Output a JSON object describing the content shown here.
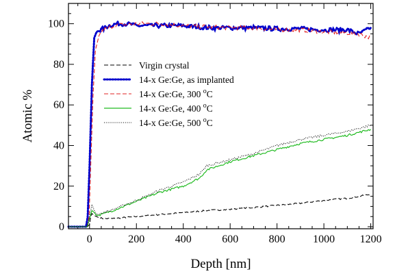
{
  "chart_data": {
    "type": "line",
    "xlabel": "Depth [nm]",
    "ylabel": "Atomic %",
    "xlim": [
      -90,
      1210
    ],
    "ylim": [
      -1,
      110
    ],
    "xticks_major": [
      0,
      200,
      400,
      600,
      800,
      1000,
      1200
    ],
    "yticks_major": [
      0,
      20,
      40,
      60,
      80,
      100
    ],
    "x_minor_step": 50,
    "y_minor_step": 5,
    "grid": false,
    "legend_position": "center-left",
    "series": [
      {
        "name": "Virgin crystal",
        "color": "#000000",
        "style": "dashed",
        "points": [
          [
            -90,
            0
          ],
          [
            -10,
            0
          ],
          [
            0,
            1
          ],
          [
            5,
            5
          ],
          [
            10,
            6.5
          ],
          [
            20,
            5.5
          ],
          [
            30,
            5
          ],
          [
            40,
            4.5
          ],
          [
            60,
            4
          ],
          [
            100,
            4
          ],
          [
            200,
            5
          ],
          [
            300,
            6
          ],
          [
            400,
            7
          ],
          [
            500,
            8
          ],
          [
            600,
            8.5
          ],
          [
            700,
            9.5
          ],
          [
            800,
            10.5
          ],
          [
            900,
            11.5
          ],
          [
            1000,
            13
          ],
          [
            1100,
            14
          ],
          [
            1200,
            16
          ]
        ]
      },
      {
        "name": "14-x Ge:Ge, as implanted",
        "color": "#0000cc",
        "style": "dotted-thick",
        "points": [
          [
            -90,
            0
          ],
          [
            -15,
            0
          ],
          [
            -8,
            5
          ],
          [
            0,
            30
          ],
          [
            10,
            70
          ],
          [
            20,
            93
          ],
          [
            30,
            96
          ],
          [
            50,
            97
          ],
          [
            80,
            99
          ],
          [
            120,
            100
          ],
          [
            160,
            100
          ],
          [
            200,
            99
          ],
          [
            300,
            99
          ],
          [
            400,
            99
          ],
          [
            500,
            98
          ],
          [
            600,
            98
          ],
          [
            700,
            98
          ],
          [
            800,
            97.5
          ],
          [
            900,
            97.5
          ],
          [
            1000,
            97
          ],
          [
            1100,
            97
          ],
          [
            1150,
            95
          ],
          [
            1200,
            98
          ]
        ]
      },
      {
        "name": "14-x Ge:Ge, 300 °C",
        "color": "#e02020",
        "style": "dashed",
        "points": [
          [
            -90,
            0
          ],
          [
            -10,
            0
          ],
          [
            -2,
            5
          ],
          [
            5,
            30
          ],
          [
            15,
            65
          ],
          [
            25,
            87
          ],
          [
            40,
            94
          ],
          [
            60,
            97
          ],
          [
            100,
            99
          ],
          [
            200,
            100
          ],
          [
            300,
            100
          ],
          [
            400,
            99
          ],
          [
            500,
            98.5
          ],
          [
            600,
            98
          ],
          [
            700,
            98
          ],
          [
            800,
            97
          ],
          [
            900,
            97
          ],
          [
            1000,
            96
          ],
          [
            1100,
            95.5
          ],
          [
            1150,
            95
          ],
          [
            1200,
            93
          ]
        ]
      },
      {
        "name": "14-x Ge:Ge, 400 °C",
        "color": "#22bb22",
        "style": "solid",
        "points": [
          [
            -90,
            0
          ],
          [
            -10,
            0
          ],
          [
            0,
            4
          ],
          [
            10,
            8
          ],
          [
            20,
            7
          ],
          [
            30,
            5.5
          ],
          [
            50,
            6
          ],
          [
            100,
            8
          ],
          [
            200,
            12.5
          ],
          [
            300,
            17
          ],
          [
            400,
            20
          ],
          [
            470,
            24
          ],
          [
            500,
            28
          ],
          [
            550,
            30
          ],
          [
            600,
            32
          ],
          [
            700,
            35
          ],
          [
            800,
            38
          ],
          [
            900,
            41
          ],
          [
            1000,
            43
          ],
          [
            1100,
            45
          ],
          [
            1200,
            48
          ]
        ]
      },
      {
        "name": "14-x Ge:Ge, 500 °C",
        "color": "#000000",
        "style": "dotted",
        "points": [
          [
            -90,
            0
          ],
          [
            -10,
            0
          ],
          [
            0,
            5
          ],
          [
            10,
            11
          ],
          [
            20,
            8
          ],
          [
            30,
            6
          ],
          [
            50,
            6.5
          ],
          [
            100,
            8.5
          ],
          [
            200,
            13
          ],
          [
            300,
            18
          ],
          [
            400,
            22
          ],
          [
            470,
            26
          ],
          [
            500,
            30
          ],
          [
            600,
            33
          ],
          [
            700,
            36
          ],
          [
            800,
            40
          ],
          [
            900,
            43
          ],
          [
            1000,
            45
          ],
          [
            1100,
            47
          ],
          [
            1200,
            50
          ]
        ]
      }
    ]
  }
}
